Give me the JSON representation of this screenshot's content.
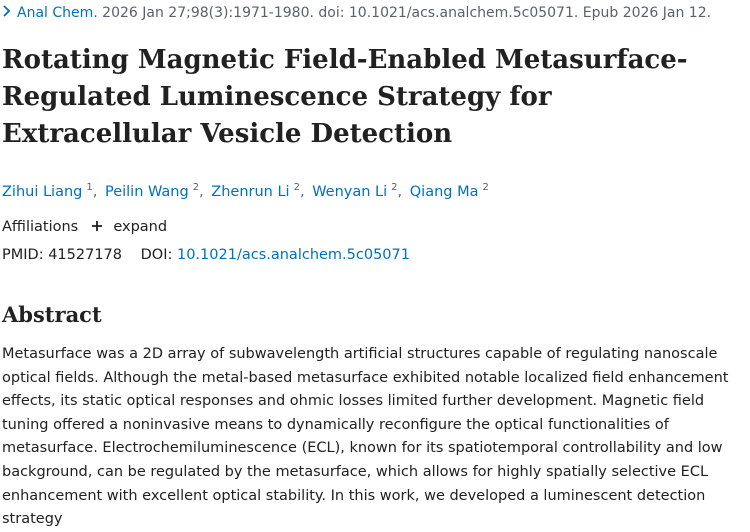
{
  "citation": {
    "journal": "Anal Chem.",
    "details": "2026 Jan 27;98(3):1971-1980. doi: 10.1021/acs.analchem.5c05071. Epub 2026 Jan 12."
  },
  "article": {
    "title": "Rotating Magnetic Field-Enabled Metasurface-Regulated Luminescence Strategy for Extracellular Vesicle Detection"
  },
  "authors": [
    {
      "name": "Zihui Liang",
      "affiliation": "1"
    },
    {
      "name": "Peilin Wang",
      "affiliation": "2"
    },
    {
      "name": "Zhenrun Li",
      "affiliation": "2"
    },
    {
      "name": "Wenyan Li",
      "affiliation": "2"
    },
    {
      "name": "Qiang Ma",
      "affiliation": "2"
    }
  ],
  "affiliations": {
    "label": "Affiliations",
    "expand_label": "expand"
  },
  "identifiers": {
    "pmid_label": "PMID:",
    "pmid": "41527178",
    "doi_label": "DOI:",
    "doi": "10.1021/acs.analchem.5c05071"
  },
  "abstract": {
    "heading": "Abstract",
    "text": "Metasurface was a 2D array of subwavelength artificial structures capable of regulating nanoscale optical fields. Although the metal-based metasurface exhibited notable localized field enhancement effects, its static optical responses and ohmic losses limited further development. Magnetic field tuning offered a noninvasive means to dynamically reconfigure the optical functionalities of metasurface. Electrochemiluminescence (ECL), known for its spatiotemporal controllability and low background, can be regulated by the metasurface, which allows for highly spatially selective ECL enhancement with excellent optical stability. In this work, we developed a luminescent detection strategy"
  },
  "icons": {
    "chevron": "chevron-right-icon",
    "plus": "plus-icon"
  },
  "colors": {
    "link": "#0071bc",
    "text": "#212121",
    "muted": "#5b616b"
  }
}
